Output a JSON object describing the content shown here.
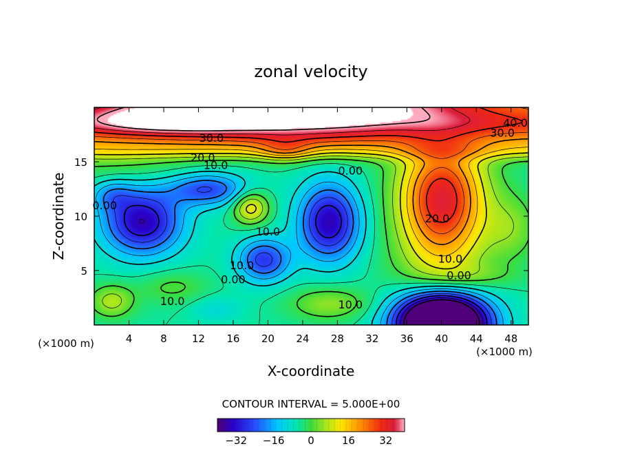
{
  "chart_data": {
    "type": "heatmap",
    "title": "zonal velocity",
    "xlabel": "X-coordinate",
    "ylabel": "Z-coordinate",
    "x_unit": "(×1000 m)",
    "y_unit": "(×1000 m)",
    "xlim": [
      0,
      50
    ],
    "ylim": [
      0,
      20
    ],
    "x_ticks": [
      4,
      8,
      12,
      16,
      20,
      24,
      28,
      32,
      36,
      40,
      44,
      48
    ],
    "y_ticks": [
      5,
      10,
      15
    ],
    "contour_interval_label": "CONTOUR INTERVAL =  5.000E+00",
    "colorbar": {
      "range": [
        -40,
        40
      ],
      "ticks": [
        -32,
        -16,
        0,
        16,
        32
      ]
    },
    "contour_labels": [
      {
        "text": "40.0",
        "x": 48.5,
        "z": 18.6
      },
      {
        "text": "30.0",
        "x": 47.0,
        "z": 17.7
      },
      {
        "text": "30.0",
        "x": 13.5,
        "z": 17.2
      },
      {
        "text": "20.0",
        "x": 12.5,
        "z": 15.4
      },
      {
        "text": "10.0",
        "x": 14.0,
        "z": 14.7
      },
      {
        "text": "0.00",
        "x": 29.5,
        "z": 14.2
      },
      {
        "text": "0.00",
        "x": 1.2,
        "z": 11.0
      },
      {
        "text": "20.0",
        "x": 39.5,
        "z": 9.8
      },
      {
        "text": "10.0",
        "x": 20.0,
        "z": 8.6
      },
      {
        "text": "10.0",
        "x": 41.0,
        "z": 6.1
      },
      {
        "text": "10.0",
        "x": 17.0,
        "z": 5.5
      },
      {
        "text": "0.00",
        "x": 42.0,
        "z": 4.6
      },
      {
        "text": "0.00",
        "x": 16.0,
        "z": 4.2
      },
      {
        "text": "10.0",
        "x": 9.0,
        "z": 2.2
      },
      {
        "text": "10.0",
        "x": 29.5,
        "z": 1.9
      }
    ],
    "features": [
      {
        "x": 22,
        "z": 20.5,
        "sx": 20,
        "sz": 2.2,
        "v": 40
      },
      {
        "x": 8,
        "z": 18.8,
        "sx": 10,
        "sz": 1.5,
        "v": 12
      },
      {
        "x": 25,
        "z": 17.2,
        "sx": 12,
        "sz": 1.0,
        "v": 6
      },
      {
        "x": 3,
        "z": 14.5,
        "sx": 8,
        "sz": 1.5,
        "v": 5
      },
      {
        "x": 22,
        "z": 16.0,
        "sx": 3,
        "sz": 1.0,
        "v": 10
      },
      {
        "x": 5.5,
        "z": 9.5,
        "sx": 4.5,
        "sz": 3.0,
        "v": -30
      },
      {
        "x": 27,
        "z": 9.5,
        "sx": 3.5,
        "sz": 3.5,
        "v": -30
      },
      {
        "x": 13,
        "z": 12.5,
        "sx": 4.5,
        "sz": 1.5,
        "v": -20
      },
      {
        "x": 19.5,
        "z": 6.0,
        "sx": 3.0,
        "sz": 2.0,
        "v": -22
      },
      {
        "x": 2,
        "z": 12.0,
        "sx": 2.5,
        "sz": 1.5,
        "v": -10
      },
      {
        "x": 18,
        "z": 10.8,
        "sx": 2.0,
        "sz": 1.5,
        "v": 18
      },
      {
        "x": 40,
        "z": 11.5,
        "sx": 4.5,
        "sz": 4.5,
        "v": 26
      },
      {
        "x": 48,
        "z": 9.0,
        "sx": 3.0,
        "sz": 3.0,
        "v": 8
      },
      {
        "x": 40,
        "z": 0.2,
        "sx": 5.0,
        "sz": 2.6,
        "v": -75
      },
      {
        "x": 2,
        "z": 2.2,
        "sx": 2.5,
        "sz": 1.5,
        "v": 12
      },
      {
        "x": 27,
        "z": 2.0,
        "sx": 4.5,
        "sz": 1.5,
        "v": 10
      },
      {
        "x": 9,
        "z": 3.5,
        "sx": 4.0,
        "sz": 1.5,
        "v": 6
      },
      {
        "x": 14,
        "z": 1.5,
        "sx": 3.0,
        "sz": 1.2,
        "v": -5
      },
      {
        "x": 44,
        "z": 4.6,
        "sx": 5.0,
        "sz": 1.0,
        "v": 4
      }
    ]
  }
}
